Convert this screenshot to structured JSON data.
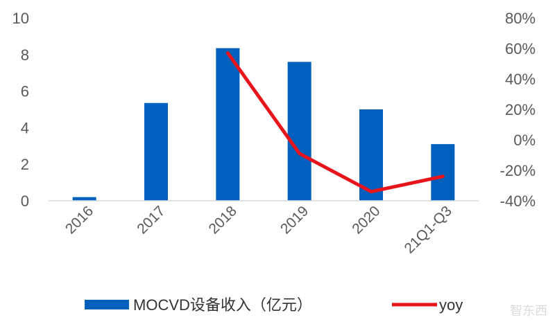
{
  "chart_data": {
    "type": "bar+line",
    "categories": [
      "2016",
      "2017",
      "2018",
      "2019",
      "2020",
      "21Q1-Q3"
    ],
    "series": [
      {
        "name": "MOCVD设备收入（亿元）",
        "type": "bar",
        "axis": "left",
        "color": "#0060BE",
        "values": [
          0.2,
          5.35,
          8.35,
          7.6,
          5.0,
          3.1
        ]
      },
      {
        "name": "yoy",
        "type": "line",
        "axis": "right",
        "color": "#E8141B",
        "values": [
          null,
          null,
          57,
          -9,
          -34,
          -24
        ]
      }
    ],
    "left_axis": {
      "ylim": [
        0,
        10
      ],
      "ticks": [
        "0",
        "2",
        "4",
        "6",
        "8",
        "10"
      ],
      "tick_values": [
        0,
        2,
        4,
        6,
        8,
        10
      ]
    },
    "right_axis": {
      "ylim": [
        -40,
        80
      ],
      "ticks": [
        "-40%",
        "-20%",
        "0%",
        "20%",
        "40%",
        "60%",
        "80%"
      ],
      "tick_values": [
        -40,
        -20,
        0,
        20,
        40,
        60,
        80
      ]
    },
    "grid": false,
    "legend_placement": "bottom",
    "x_tick_rotation": "-45deg"
  },
  "watermark": "智东西"
}
